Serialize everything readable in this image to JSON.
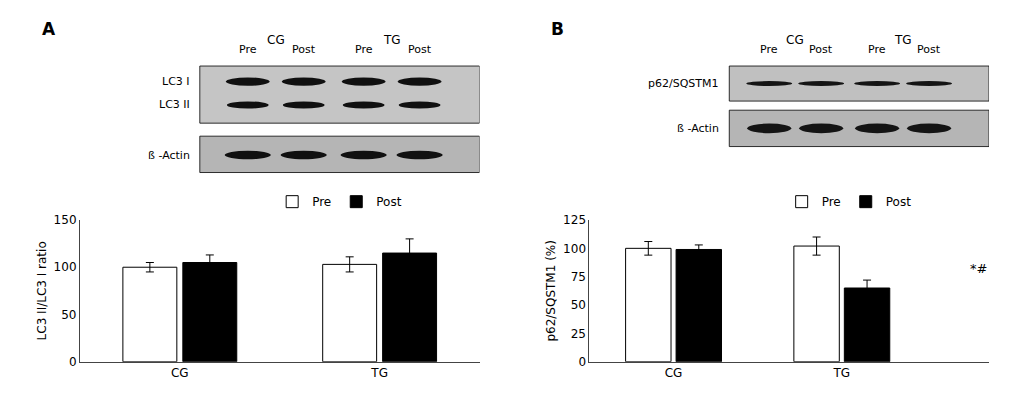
{
  "chart_data": [
    {
      "type": "bar",
      "title": "A",
      "categories": [
        "CG",
        "TG"
      ],
      "series": [
        {
          "name": "Pre",
          "color": "#ffffff",
          "values": [
            100,
            103
          ],
          "errors": [
            5,
            8
          ]
        },
        {
          "name": "Post",
          "color": "#000000",
          "values": [
            105,
            115
          ],
          "errors": [
            8,
            15
          ]
        }
      ],
      "ylabel": "LC3 II/LC3 I ratio",
      "ylim": [
        0,
        150
      ],
      "yticks": [
        0,
        50,
        100,
        150
      ],
      "grid": false,
      "legend": "top",
      "annotations": [],
      "blot": {
        "rows": [
          "LC3 I",
          "LC3 II",
          "ß -Actin"
        ],
        "headers": [
          "CG",
          "TG"
        ],
        "lanes": [
          "Pre",
          "Post",
          "Pre",
          "Post"
        ]
      }
    },
    {
      "type": "bar",
      "title": "B",
      "categories": [
        "CG",
        "TG"
      ],
      "series": [
        {
          "name": "Pre",
          "color": "#ffffff",
          "values": [
            100,
            102
          ],
          "errors": [
            6,
            8
          ]
        },
        {
          "name": "Post",
          "color": "#000000",
          "values": [
            99,
            65
          ],
          "errors": [
            4,
            7
          ]
        }
      ],
      "ylabel": "p62/SQSTM1 (%)",
      "ylim": [
        0,
        125
      ],
      "yticks": [
        0,
        25,
        50,
        75,
        100,
        125
      ],
      "grid": false,
      "legend": "top",
      "annotations": [
        {
          "text": "*#",
          "category": "TG",
          "series": "Post"
        }
      ],
      "blot": {
        "rows": [
          "p62/SQSTM1",
          "ß -Actin"
        ],
        "headers": [
          "CG",
          "TG"
        ],
        "lanes": [
          "Pre",
          "Post",
          "Pre",
          "Post"
        ]
      }
    }
  ]
}
